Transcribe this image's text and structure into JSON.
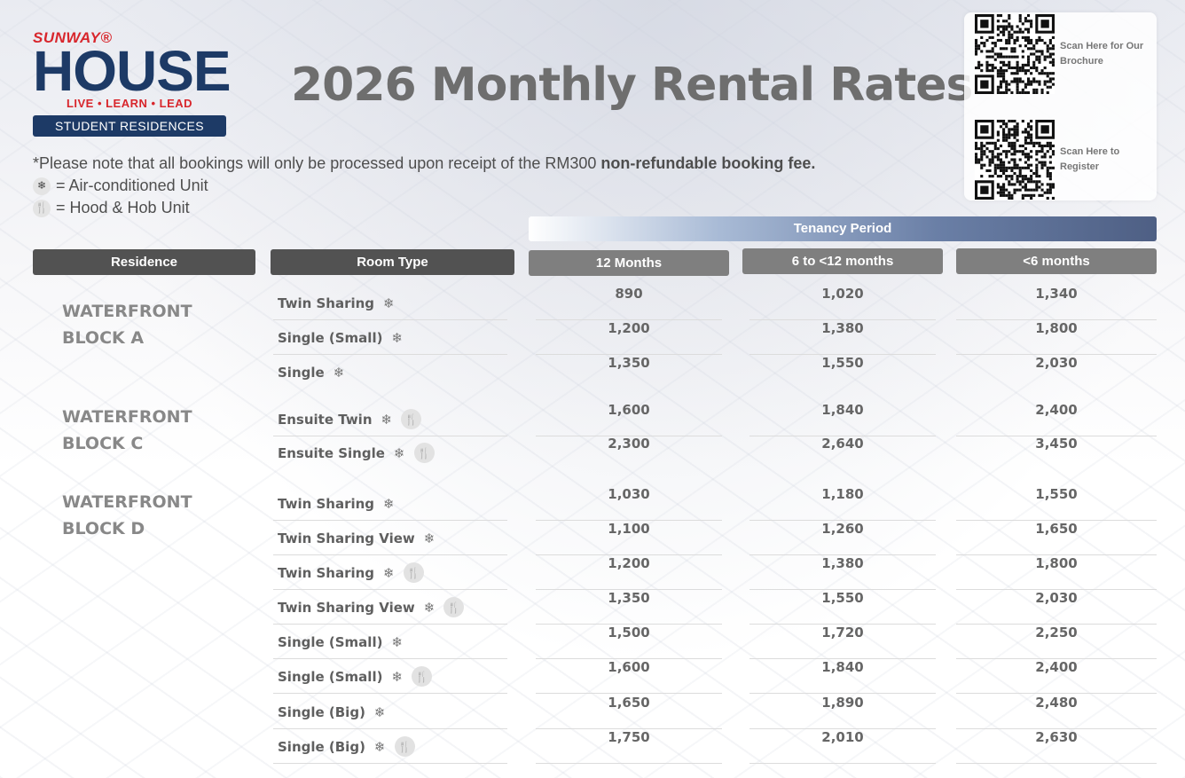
{
  "logo": {
    "brand": "SUNWAY®",
    "name": "HOUSE",
    "tagline": "LIVE • LEARN • LEAD",
    "subtitle": "STUDENT RESIDENCES"
  },
  "title": "2026 Monthly Rental Rates",
  "notes": {
    "booking_prefix": "*Please note that all bookings will only be processed upon receipt of the RM300 ",
    "booking_bold": "non-refundable booking fee.",
    "ac_legend": "= Air-conditioned Unit",
    "hood_legend": "= Hood & Hob Unit"
  },
  "qr": {
    "brochure_text": "Scan Here for Our Brochure",
    "register_text": "Scan Here to Register"
  },
  "table": {
    "tenancy_period": "Tenancy Period",
    "headers": {
      "residence": "Residence",
      "room_type": "Room Type",
      "p12": "12 Months",
      "p6": "6 to <12 months",
      "lt6": "<6 months"
    },
    "residences": {
      "a_line1": "WATERFRONT",
      "a_line2": "BLOCK A",
      "c_line1": "WATERFRONT",
      "c_line2": "BLOCK C",
      "d_line1": "WATERFRONT",
      "d_line2": "BLOCK D"
    },
    "rows": [
      {
        "room": "Twin Sharing",
        "ac": true,
        "hood": false,
        "p12": "890",
        "p6": "1,020",
        "lt6": "1,340"
      },
      {
        "room": "Single (Small)",
        "ac": true,
        "hood": false,
        "p12": "1,200",
        "p6": "1,380",
        "lt6": "1,800"
      },
      {
        "room": "Single",
        "ac": true,
        "hood": false,
        "p12": "1,350",
        "p6": "1,550",
        "lt6": "2,030"
      },
      {
        "room": "Ensuite Twin",
        "ac": true,
        "hood": true,
        "p12": "1,600",
        "p6": "1,840",
        "lt6": "2,400"
      },
      {
        "room": "Ensuite Single",
        "ac": true,
        "hood": true,
        "p12": "2,300",
        "p6": "2,640",
        "lt6": "3,450"
      },
      {
        "room": "Twin Sharing",
        "ac": true,
        "hood": false,
        "p12": "1,030",
        "p6": "1,180",
        "lt6": "1,550"
      },
      {
        "room": "Twin Sharing View",
        "ac": true,
        "hood": false,
        "p12": "1,100",
        "p6": "1,260",
        "lt6": "1,650"
      },
      {
        "room": "Twin Sharing",
        "ac": true,
        "hood": true,
        "p12": "1,200",
        "p6": "1,380",
        "lt6": "1,800"
      },
      {
        "room": "Twin Sharing View",
        "ac": true,
        "hood": true,
        "p12": "1,350",
        "p6": "1,550",
        "lt6": "2,030"
      },
      {
        "room": "Single (Small)",
        "ac": true,
        "hood": false,
        "p12": "1,500",
        "p6": "1,720",
        "lt6": "2,250"
      },
      {
        "room": "Single (Small)",
        "ac": true,
        "hood": true,
        "p12": "1,600",
        "p6": "1,840",
        "lt6": "2,400"
      },
      {
        "room": "Single (Big)",
        "ac": true,
        "hood": false,
        "p12": "1,650",
        "p6": "1,890",
        "lt6": "2,480"
      },
      {
        "room": "Single (Big)",
        "ac": true,
        "hood": true,
        "p12": "1,750",
        "p6": "2,010",
        "lt6": "2,630"
      }
    ]
  }
}
